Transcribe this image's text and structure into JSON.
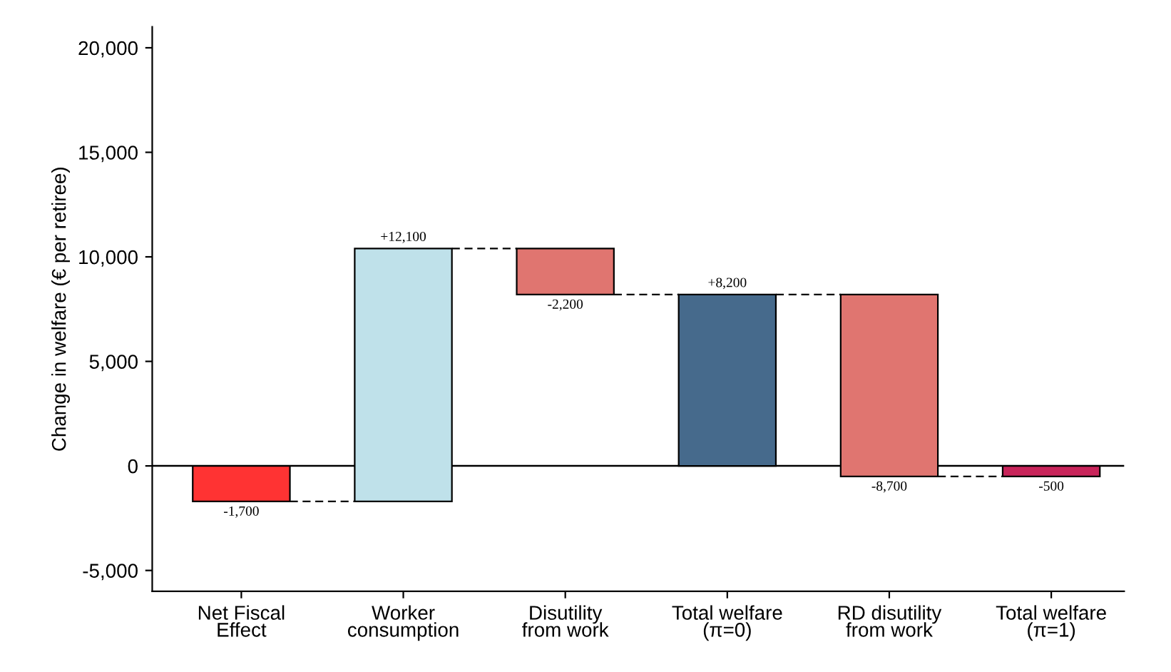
{
  "chart_data": {
    "type": "bar",
    "categories": [
      "Net Fiscal\nEffect",
      "Worker\nconsumption",
      "Disutility\nfrom work",
      "Total welfare\n(π=0)",
      "RD disutility\nfrom work",
      "Total welfare\n(π=1)"
    ],
    "values": [
      -1700,
      12100,
      -2200,
      8200,
      -8700,
      -500
    ],
    "base": [
      0,
      -1700,
      10400,
      0,
      8200,
      0
    ],
    "colors": [
      "#ff3333",
      "#bfe1ea",
      "#e07570",
      "#466a8c",
      "#e07570",
      "#c8245a"
    ],
    "value_labels": [
      "-1,700",
      "+12,100",
      "-2,200",
      "+8,200",
      "-8,700",
      "-500"
    ],
    "ylabel": "Change in welfare (€ per retiree)",
    "ylim": [
      -6000,
      21000
    ],
    "yticks": [
      {
        "value": -5000,
        "label": "-5,000"
      },
      {
        "value": 0,
        "label": "0"
      },
      {
        "value": 5000,
        "label": "5,000"
      },
      {
        "value": 10000,
        "label": "10,000"
      },
      {
        "value": 15000,
        "label": "15,000"
      },
      {
        "value": 20000,
        "label": "20,000"
      }
    ],
    "ref_lines": [
      {
        "axis": "y",
        "value": 0,
        "color": "#000000",
        "line_style": "solid"
      }
    ],
    "grid": false,
    "legend": false
  }
}
